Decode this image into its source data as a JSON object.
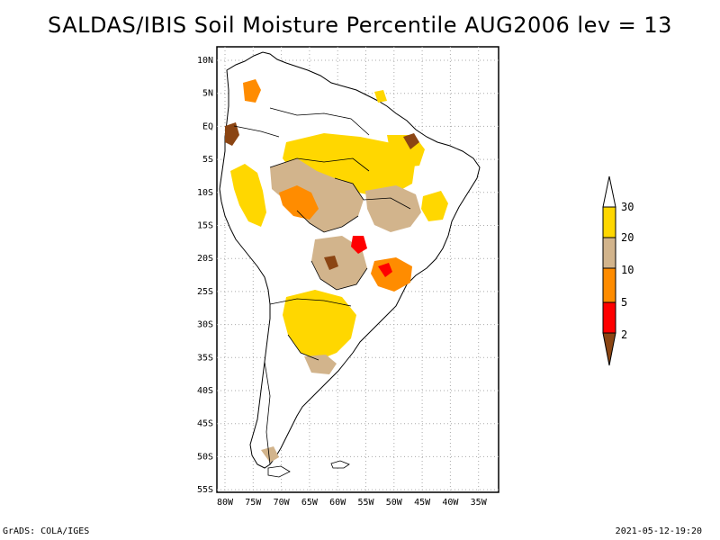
{
  "title": "SALDAS/IBIS Soil Moisture Percentile AUG2006 lev = 13",
  "map": {
    "lat_ticks": [
      "10N",
      "5N",
      "EQ",
      "5S",
      "10S",
      "15S",
      "20S",
      "25S",
      "30S",
      "35S",
      "40S",
      "45S",
      "50S",
      "55S"
    ],
    "lon_ticks": [
      "80W",
      "75W",
      "70W",
      "65W",
      "60W",
      "55W",
      "50W",
      "45W",
      "40W",
      "35W"
    ],
    "grid": true,
    "projection": "latlon",
    "coastline_color": "#000000"
  },
  "legend": {
    "labels": [
      "30",
      "20",
      "10",
      "5",
      "2"
    ],
    "colors": {
      "above_30": "#ffffff",
      "20_30": "#ffd700",
      "10_20": "#d2b48c",
      "5_10": "#ff8c00",
      "2_5": "#ff0000",
      "below_2": "#8b4513"
    },
    "placement": "right"
  },
  "footer": {
    "left": "GrADS: COLA/IGES",
    "right": "2021-05-12-19:20"
  }
}
